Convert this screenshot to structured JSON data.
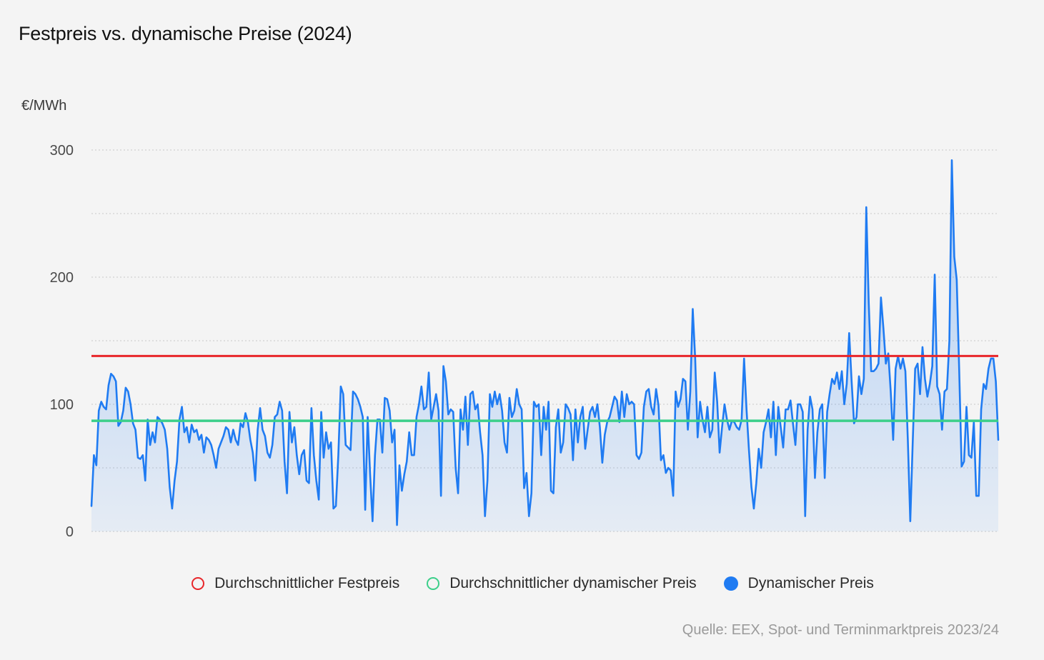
{
  "chart_title": "Festpreis vs. dynamische Preise (2024)",
  "unit_label": "€/MWh",
  "source": "Quelle: EEX, Spot- und Terminmarktpreis 2023/24",
  "legend": [
    {
      "label": "Durchschnittlicher Festpreis",
      "color": "#e8262a",
      "style": "ring"
    },
    {
      "label": "Durchschnittlicher dynamischer Preis",
      "color": "#3ccf8a",
      "style": "ring"
    },
    {
      "label": "Dynamischer Preis",
      "color": "#1f7bf2",
      "style": "filled"
    }
  ],
  "chart_data": {
    "type": "area",
    "title": "Festpreis vs. dynamische Preise (2024)",
    "ylabel": "€/MWh",
    "ylim": [
      0,
      300
    ],
    "yticks": [
      0,
      100,
      200,
      300
    ],
    "grid": true,
    "legend_position": "bottom",
    "reference_lines": [
      {
        "name": "Durchschnittlicher Festpreis",
        "value": 138,
        "color": "#e8262a"
      },
      {
        "name": "Durchschnittlicher dynamischer Preis",
        "value": 87,
        "color": "#3ccf8a"
      }
    ],
    "series": [
      {
        "name": "Dynamischer Preis",
        "color": "#1f7bf2",
        "values": [
          20,
          60,
          52,
          95,
          102,
          98,
          96,
          115,
          124,
          122,
          118,
          83,
          86,
          95,
          113,
          110,
          100,
          85,
          80,
          58,
          57,
          60,
          40,
          88,
          68,
          78,
          70,
          90,
          88,
          85,
          80,
          65,
          35,
          18,
          40,
          55,
          88,
          98,
          78,
          82,
          70,
          84,
          78,
          80,
          72,
          76,
          62,
          74,
          72,
          68,
          60,
          50,
          65,
          70,
          75,
          82,
          80,
          70,
          80,
          72,
          68,
          85,
          82,
          93,
          86,
          72,
          62,
          40,
          80,
          97,
          80,
          75,
          62,
          58,
          68,
          90,
          92,
          102,
          95,
          55,
          30,
          94,
          70,
          82,
          60,
          45,
          60,
          64,
          40,
          38,
          97,
          60,
          40,
          25,
          94,
          58,
          78,
          65,
          70,
          18,
          20,
          60,
          114,
          108,
          68,
          66,
          64,
          110,
          108,
          104,
          98,
          90,
          17,
          90,
          45,
          8,
          60,
          88,
          88,
          62,
          105,
          104,
          95,
          70,
          80,
          5,
          52,
          32,
          45,
          55,
          78,
          60,
          60,
          90,
          100,
          114,
          96,
          98,
          125,
          88,
          98,
          108,
          95,
          28,
          130,
          118,
          92,
          96,
          94,
          50,
          30,
          96,
          80,
          106,
          68,
          108,
          110,
          96,
          100,
          78,
          60,
          12,
          40,
          108,
          98,
          110,
          100,
          108,
          95,
          70,
          62,
          105,
          90,
          95,
          112,
          100,
          96,
          34,
          46,
          12,
          30,
          102,
          98,
          100,
          60,
          98,
          80,
          102,
          32,
          30,
          82,
          96,
          62,
          70,
          100,
          97,
          92,
          56,
          96,
          70,
          90,
          98,
          65,
          80,
          94,
          98,
          90,
          100,
          82,
          54,
          76,
          86,
          90,
          98,
          106,
          103,
          86,
          110,
          90,
          108,
          100,
          102,
          100,
          60,
          57,
          62,
          98,
          110,
          112,
          98,
          92,
          112,
          99,
          56,
          60,
          46,
          50,
          48,
          28,
          110,
          98,
          104,
          120,
          118,
          80,
          110,
          175,
          136,
          74,
          102,
          88,
          78,
          98,
          74,
          80,
          125,
          102,
          62,
          82,
          100,
          88,
          80,
          87,
          86,
          82,
          80,
          88,
          136,
          96,
          64,
          35,
          18,
          38,
          65,
          50,
          78,
          86,
          96,
          74,
          102,
          60,
          98,
          82,
          66,
          96,
          96,
          103,
          85,
          68,
          100,
          100,
          94,
          12,
          80,
          106,
          96,
          42,
          78,
          96,
          100,
          42,
          94,
          108,
          120,
          116,
          125,
          112,
          126,
          100,
          116,
          156,
          118,
          85,
          90,
          122,
          108,
          120,
          255,
          180,
          126,
          126,
          128,
          132,
          184,
          160,
          132,
          140,
          110,
          72,
          128,
          138,
          128,
          136,
          126,
          72,
          8,
          70,
          128,
          132,
          108,
          145,
          120,
          106,
          116,
          130,
          202,
          114,
          108,
          80,
          110,
          112,
          150,
          292,
          216,
          198,
          128,
          51,
          55,
          98,
          60,
          58,
          86,
          28,
          28,
          96,
          116,
          112,
          128,
          136,
          136,
          118,
          72
        ]
      }
    ]
  }
}
